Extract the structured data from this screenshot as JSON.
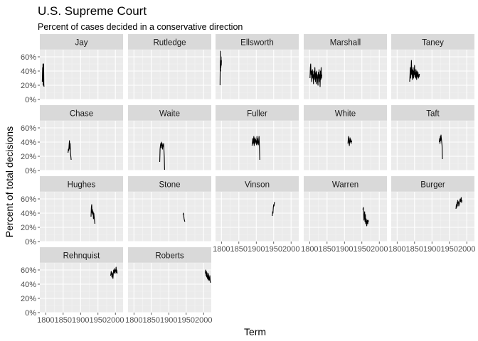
{
  "chart_data": {
    "type": "line",
    "title": "U.S. Supreme Court",
    "subtitle": "Percent of cases decided in a conservative direction",
    "xlabel": "Term",
    "ylabel": "Percent of total decisions",
    "xlim": [
      1783,
      2022
    ],
    "ylim": [
      0,
      70
    ],
    "x_ticks": [
      1800,
      1850,
      1900,
      1950,
      2000
    ],
    "x_tick_labels": [
      "1800",
      "1850",
      "1900",
      "1950",
      "2000"
    ],
    "y_ticks": [
      0,
      20,
      40,
      60
    ],
    "y_tick_labels": [
      "0%",
      "20%",
      "40%",
      "60%"
    ],
    "grid": true,
    "ncol": 5,
    "panels": [
      {
        "name": "Jay",
        "x": [
          1790,
          1791,
          1791.5,
          1792,
          1792.5,
          1793,
          1793.5,
          1794,
          1794.5,
          1795
        ],
        "y": [
          25,
          45,
          30,
          50,
          20,
          48,
          35,
          50,
          22,
          18
        ]
      },
      {
        "name": "Rutledge",
        "x": [],
        "y": []
      },
      {
        "name": "Ellsworth",
        "x": [
          1796,
          1796.5,
          1797,
          1797.5,
          1798,
          1798.5,
          1799,
          1799.5,
          1800
        ],
        "y": [
          20,
          45,
          55,
          40,
          68,
          45,
          60,
          48,
          55
        ]
      },
      {
        "name": "Marshall",
        "x": [
          1801,
          1802,
          1803,
          1804,
          1805,
          1806,
          1807,
          1808,
          1809,
          1810,
          1811,
          1812,
          1813,
          1814,
          1815,
          1816,
          1817,
          1818,
          1819,
          1820,
          1821,
          1822,
          1823,
          1824,
          1825,
          1826,
          1827,
          1828,
          1829,
          1830,
          1831,
          1832,
          1833,
          1834,
          1835
        ],
        "y": [
          30,
          45,
          50,
          35,
          40,
          25,
          38,
          42,
          30,
          35,
          22,
          40,
          28,
          35,
          45,
          30,
          25,
          38,
          22,
          40,
          30,
          35,
          25,
          20,
          38,
          30,
          42,
          25,
          35,
          18,
          40,
          28,
          45,
          30,
          35
        ]
      },
      {
        "name": "Taney",
        "x": [
          1836,
          1837,
          1838,
          1839,
          1840,
          1841,
          1842,
          1843,
          1844,
          1845,
          1846,
          1847,
          1848,
          1849,
          1850,
          1851,
          1852,
          1853,
          1854,
          1855,
          1856,
          1857,
          1858,
          1859,
          1860,
          1861,
          1862,
          1863,
          1864
        ],
        "y": [
          25,
          35,
          45,
          30,
          40,
          55,
          35,
          42,
          28,
          38,
          45,
          30,
          40,
          35,
          48,
          32,
          38,
          30,
          42,
          35,
          28,
          40,
          36,
          32,
          38,
          30,
          35,
          32,
          36
        ]
      },
      {
        "name": "Chase",
        "x": [
          1864,
          1865,
          1866,
          1867,
          1868,
          1869,
          1870,
          1871,
          1872,
          1873
        ],
        "y": [
          25,
          30,
          28,
          35,
          42,
          30,
          38,
          25,
          20,
          15
        ]
      },
      {
        "name": "Waite",
        "x": [
          1874,
          1875,
          1876,
          1877,
          1878,
          1879,
          1880,
          1881,
          1882,
          1883,
          1884,
          1885,
          1886,
          1887,
          1888
        ],
        "y": [
          12,
          30,
          35,
          38,
          32,
          40,
          35,
          38,
          30,
          36,
          34,
          38,
          30,
          20,
          1
        ]
      },
      {
        "name": "Fuller",
        "x": [
          1888,
          1889,
          1890,
          1891,
          1892,
          1893,
          1894,
          1895,
          1896,
          1897,
          1898,
          1899,
          1900,
          1901,
          1902,
          1903,
          1904,
          1905,
          1906,
          1907,
          1908,
          1909,
          1910
        ],
        "y": [
          35,
          40,
          45,
          38,
          42,
          48,
          35,
          40,
          46,
          38,
          44,
          40,
          42,
          36,
          48,
          38,
          45,
          40,
          36,
          42,
          48,
          35,
          15
        ]
      },
      {
        "name": "White",
        "x": [
          1910,
          1911,
          1912,
          1913,
          1914,
          1915,
          1916,
          1917,
          1918,
          1919,
          1920,
          1921
        ],
        "y": [
          38,
          45,
          48,
          40,
          35,
          42,
          46,
          40,
          44,
          38,
          42,
          40
        ]
      },
      {
        "name": "Taft",
        "x": [
          1921,
          1922,
          1923,
          1924,
          1925,
          1926,
          1927,
          1928,
          1929,
          1930
        ],
        "y": [
          40,
          45,
          38,
          48,
          42,
          50,
          45,
          40,
          35,
          16
        ]
      },
      {
        "name": "Hughes",
        "x": [
          1930,
          1931,
          1932,
          1933,
          1934,
          1935,
          1936,
          1937,
          1938,
          1939,
          1940,
          1941
        ],
        "y": [
          35,
          48,
          52,
          40,
          45,
          38,
          42,
          32,
          40,
          35,
          30,
          25
        ]
      },
      {
        "name": "Stone",
        "x": [
          1941,
          1942,
          1943,
          1944,
          1945,
          1946
        ],
        "y": [
          38,
          40,
          36,
          32,
          30,
          28
        ]
      },
      {
        "name": "Vinson",
        "x": [
          1946,
          1947,
          1948,
          1949,
          1950,
          1951,
          1952,
          1953
        ],
        "y": [
          36,
          42,
          40,
          48,
          52,
          50,
          55,
          54
        ]
      },
      {
        "name": "Warren",
        "x": [
          1953,
          1954,
          1955,
          1956,
          1957,
          1958,
          1959,
          1960,
          1961,
          1962,
          1963,
          1964,
          1965,
          1966,
          1967,
          1968,
          1969
        ],
        "y": [
          45,
          48,
          40,
          30,
          36,
          42,
          28,
          38,
          25,
          32,
          30,
          22,
          28,
          30,
          25,
          30,
          28
        ]
      },
      {
        "name": "Burger",
        "x": [
          1969,
          1970,
          1971,
          1972,
          1973,
          1974,
          1975,
          1976,
          1977,
          1978,
          1979,
          1980,
          1981,
          1982,
          1983,
          1984,
          1985,
          1986
        ],
        "y": [
          46,
          52,
          48,
          55,
          50,
          58,
          54,
          56,
          50,
          52,
          55,
          58,
          60,
          56,
          58,
          62,
          55,
          58
        ]
      },
      {
        "name": "Rehnquist",
        "x": [
          1986,
          1987,
          1988,
          1989,
          1990,
          1991,
          1992,
          1993,
          1994,
          1995,
          1996,
          1997,
          1998,
          1999,
          2000,
          2001,
          2002,
          2003,
          2004,
          2005
        ],
        "y": [
          52,
          54,
          58,
          55,
          50,
          56,
          52,
          48,
          55,
          60,
          56,
          58,
          62,
          55,
          60,
          58,
          64,
          56,
          60,
          55
        ]
      },
      {
        "name": "Roberts",
        "x": [
          2005,
          2006,
          2007,
          2008,
          2009,
          2010,
          2011,
          2012,
          2013,
          2014,
          2015,
          2016,
          2017,
          2018,
          2019,
          2020
        ],
        "y": [
          55,
          60,
          52,
          58,
          50,
          56,
          48,
          52,
          46,
          55,
          50,
          45,
          48,
          52,
          44,
          42
        ]
      }
    ]
  }
}
